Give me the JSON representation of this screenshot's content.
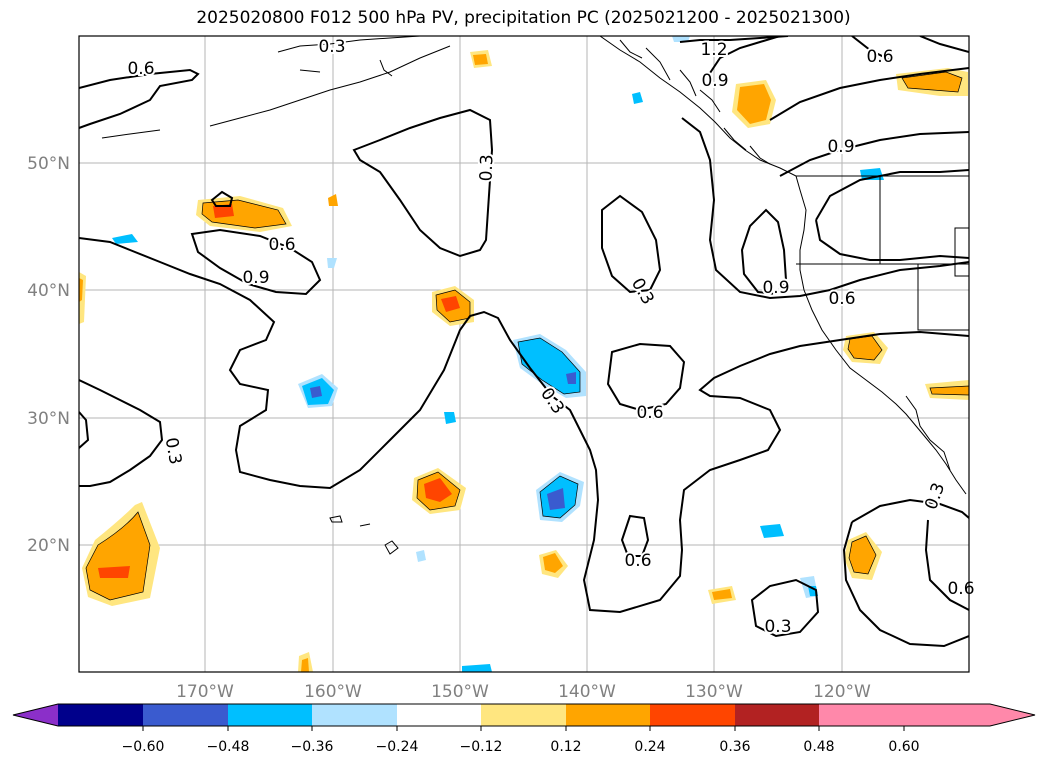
{
  "title": "2025020800 F012 500 hPa PV, precipitation PC (2025021200 - 2025021300)",
  "map": {
    "lat_ticks": [
      "50°N",
      "40°N",
      "30°N",
      "20°N"
    ],
    "lon_ticks": [
      "170°W",
      "160°W",
      "150°W",
      "140°W",
      "130°W",
      "120°W"
    ]
  },
  "contour_labels": [
    "0.6",
    "0.3",
    "1.2",
    "0.9",
    "0.6",
    "0.9",
    "0.3",
    "0.6",
    "0.9",
    "0.3",
    "0.9",
    "0.6",
    "0.3",
    "0.6",
    "0.3",
    "0.6",
    "0.3",
    "0.3",
    "0.6"
  ],
  "colorbar": {
    "tick_labels": [
      "−0.60",
      "−0.48",
      "−0.36",
      "−0.24",
      "−0.12",
      "0.12",
      "0.24",
      "0.36",
      "0.48",
      "0.60"
    ],
    "colors": [
      "#8b2fc9",
      "#00008b",
      "#3a5bcf",
      "#00bfff",
      "#b0e2ff",
      "#ffffff",
      "#ffe680",
      "#ffa500",
      "#ff4500",
      "#b22222",
      "#ff88aa"
    ]
  }
}
